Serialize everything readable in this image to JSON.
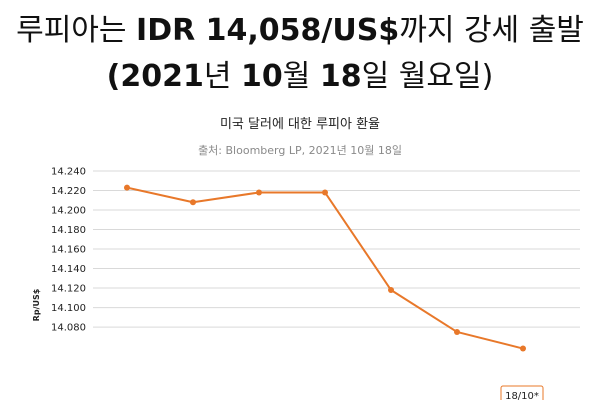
{
  "headline": {
    "line1_pre": "루피아는 ",
    "line1_bold": "IDR 14,058/US$",
    "line1_post": "까지 강세 출발",
    "line2_a": "(2021",
    "line2_b": "년 ",
    "line2_c": "10",
    "line2_d": "월 ",
    "line2_e": "18",
    "line2_f": "일 월요일)"
  },
  "chart_data": {
    "type": "line",
    "title": "미국 달러에 대한 루피아 환율",
    "subtitle": "출처: Bloomberg LP, 2021년 10월 18일",
    "ylabel": "Rp/US$",
    "xlabel": "",
    "ylim": [
      14058,
      14240
    ],
    "yticks": [
      "14.240",
      "14.220",
      "14.200",
      "14.180",
      "14.160",
      "14.140",
      "14.120",
      "14.100",
      "14.080"
    ],
    "ytick_values": [
      14240,
      14220,
      14200,
      14180,
      14160,
      14140,
      14120,
      14100,
      14080
    ],
    "grid": true,
    "color": "#e8782a",
    "series": [
      {
        "values": [
          14223,
          14208,
          14218,
          14218,
          14118,
          14075,
          14058
        ]
      }
    ],
    "annotation": "18/10*"
  }
}
